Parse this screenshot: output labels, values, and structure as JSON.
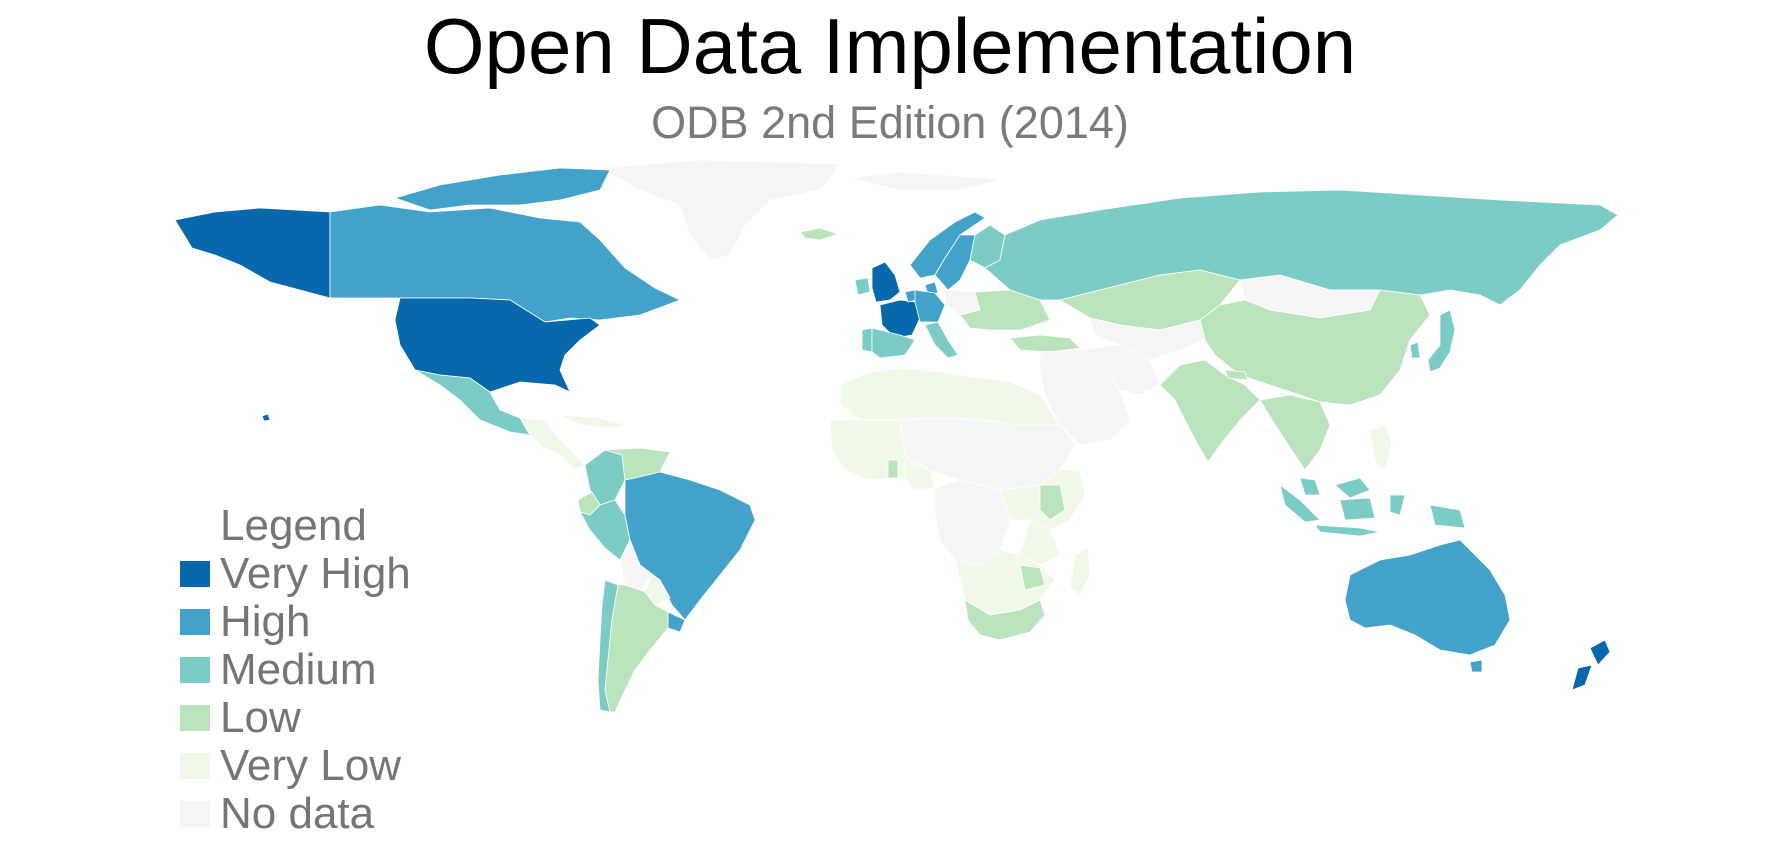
{
  "title": "Open Data Implementation",
  "subtitle": "ODB 2nd Edition (2014)",
  "legend": {
    "title": "Legend",
    "items": [
      {
        "label": "Very High",
        "color": "#0868ac",
        "key": "vhigh"
      },
      {
        "label": "High",
        "color": "#43a2ca",
        "key": "high"
      },
      {
        "label": "Medium",
        "color": "#7bccc4",
        "key": "med"
      },
      {
        "label": "Low",
        "color": "#bae4bc",
        "key": "low"
      },
      {
        "label": "Very Low",
        "color": "#f0f9e8",
        "key": "vlow"
      },
      {
        "label": "No data",
        "color": "#f5f5f5",
        "key": "nodata"
      }
    ]
  },
  "map_data": {
    "type": "choropleth",
    "regions": [
      {
        "name": "Alaska",
        "level": "vhigh"
      },
      {
        "name": "Canada",
        "level": "high"
      },
      {
        "name": "United States",
        "level": "vhigh"
      },
      {
        "name": "Mexico",
        "level": "med"
      },
      {
        "name": "Central America",
        "level": "vlow"
      },
      {
        "name": "Caribbean",
        "level": "vlow"
      },
      {
        "name": "Colombia",
        "level": "med"
      },
      {
        "name": "Venezuela",
        "level": "low"
      },
      {
        "name": "Ecuador",
        "level": "low"
      },
      {
        "name": "Peru",
        "level": "med"
      },
      {
        "name": "Brazil",
        "level": "high"
      },
      {
        "name": "Bolivia",
        "level": "nodata"
      },
      {
        "name": "Paraguay",
        "level": "vlow"
      },
      {
        "name": "Uruguay",
        "level": "high"
      },
      {
        "name": "Chile",
        "level": "med"
      },
      {
        "name": "Argentina",
        "level": "low"
      },
      {
        "name": "Greenland",
        "level": "nodata"
      },
      {
        "name": "Iceland",
        "level": "low"
      },
      {
        "name": "United Kingdom",
        "level": "vhigh"
      },
      {
        "name": "Ireland",
        "level": "med"
      },
      {
        "name": "France",
        "level": "vhigh"
      },
      {
        "name": "Spain",
        "level": "med"
      },
      {
        "name": "Portugal",
        "level": "med"
      },
      {
        "name": "Germany",
        "level": "high"
      },
      {
        "name": "Netherlands",
        "level": "high"
      },
      {
        "name": "Italy",
        "level": "med"
      },
      {
        "name": "Norway",
        "level": "high"
      },
      {
        "name": "Sweden",
        "level": "high"
      },
      {
        "name": "Finland",
        "level": "med"
      },
      {
        "name": "Denmark",
        "level": "high"
      },
      {
        "name": "Poland",
        "level": "nodata"
      },
      {
        "name": "Eastern Europe",
        "level": "low"
      },
      {
        "name": "Russia",
        "level": "med"
      },
      {
        "name": "Kazakhstan",
        "level": "low"
      },
      {
        "name": "Mongolia",
        "level": "nodata"
      },
      {
        "name": "China",
        "level": "low"
      },
      {
        "name": "Japan",
        "level": "med"
      },
      {
        "name": "South Korea",
        "level": "med"
      },
      {
        "name": "Turkey",
        "level": "low"
      },
      {
        "name": "Middle East",
        "level": "nodata"
      },
      {
        "name": "Iran",
        "level": "nodata"
      },
      {
        "name": "Central Asia",
        "level": "nodata"
      },
      {
        "name": "India",
        "level": "low"
      },
      {
        "name": "Nepal",
        "level": "low"
      },
      {
        "name": "Southeast Asia",
        "level": "low"
      },
      {
        "name": "Philippines",
        "level": "vlow"
      },
      {
        "name": "Malaysia",
        "level": "med"
      },
      {
        "name": "Indonesia",
        "level": "med"
      },
      {
        "name": "North Africa",
        "level": "vlow"
      },
      {
        "name": "Sahara",
        "level": "nodata"
      },
      {
        "name": "West Africa",
        "level": "vlow"
      },
      {
        "name": "Ghana",
        "level": "low"
      },
      {
        "name": "Nigeria",
        "level": "vlow"
      },
      {
        "name": "Central Africa",
        "level": "nodata"
      },
      {
        "name": "East Africa",
        "level": "vlow"
      },
      {
        "name": "Kenya",
        "level": "low"
      },
      {
        "name": "Tanzania",
        "level": "vlow"
      },
      {
        "name": "Southern Africa",
        "level": "vlow"
      },
      {
        "name": "Zimbabwe",
        "level": "low"
      },
      {
        "name": "South Africa",
        "level": "low"
      },
      {
        "name": "Madagascar",
        "level": "vlow"
      },
      {
        "name": "Australia",
        "level": "high"
      },
      {
        "name": "Tasmania",
        "level": "high"
      },
      {
        "name": "New Zealand",
        "level": "vhigh"
      }
    ]
  }
}
